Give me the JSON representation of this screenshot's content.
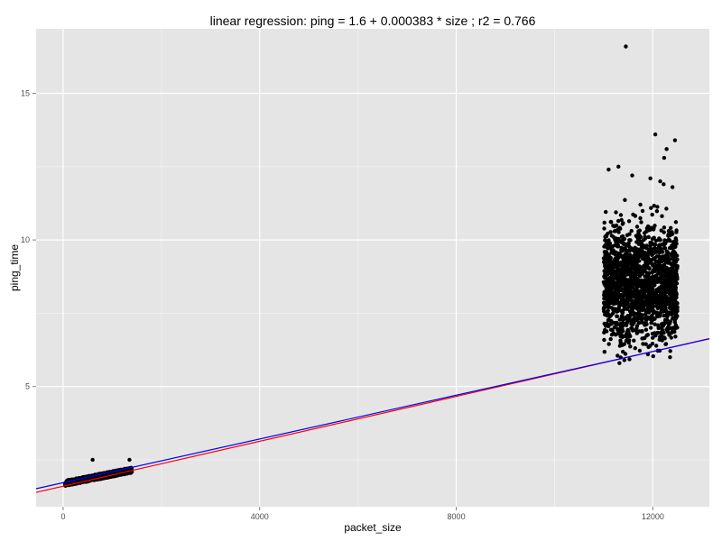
{
  "chart_data": {
    "type": "scatter",
    "title": "linear regression: ping = 1.6 + 0.000383 * size ; r2 = 0.766",
    "xlabel": "packet_size",
    "ylabel": "ping_time",
    "xlim": [
      -550,
      13150
    ],
    "ylim": [
      0.9,
      17.2
    ],
    "x_ticks": [
      0,
      4000,
      8000,
      12000
    ],
    "x_tick_labels": [
      "0",
      "4000",
      "8000",
      "12000"
    ],
    "y_ticks": [
      5,
      10,
      15
    ],
    "y_tick_labels": [
      "5",
      "10",
      "15"
    ],
    "grid": true,
    "legend": "none",
    "colors": {
      "panel_background": "#e5e5e5",
      "grid_major": "#ffffff",
      "grid_minor": "#f2f2f2",
      "points": "#000000",
      "fit_line": "#ff0000",
      "second_line": "#0000ff"
    },
    "clusters": [
      {
        "x_range": [
          40,
          1400
        ],
        "y_trend": [
          1.7,
          2.15
        ],
        "y_spread": 0.18,
        "count": 1100
      },
      {
        "x_range": [
          11000,
          12500
        ],
        "y_range": [
          5.8,
          11.2
        ],
        "count": 1700
      }
    ],
    "notable_points": [
      {
        "x": 11450,
        "y": 16.6
      },
      {
        "x": 12050,
        "y": 13.6
      },
      {
        "x": 12450,
        "y": 13.4
      },
      {
        "x": 12280,
        "y": 13.1
      },
      {
        "x": 12230,
        "y": 12.8
      },
      {
        "x": 11100,
        "y": 12.4
      },
      {
        "x": 11300,
        "y": 12.5
      },
      {
        "x": 11580,
        "y": 12.2
      },
      {
        "x": 11950,
        "y": 12.1
      },
      {
        "x": 12150,
        "y": 12.0
      },
      {
        "x": 12400,
        "y": 11.8
      },
      {
        "x": 12220,
        "y": 11.9
      },
      {
        "x": 11320,
        "y": 5.8
      },
      {
        "x": 11420,
        "y": 5.9
      },
      {
        "x": 11900,
        "y": 6.1
      },
      {
        "x": 12350,
        "y": 6.0
      },
      {
        "x": 600,
        "y": 2.5
      },
      {
        "x": 1350,
        "y": 2.5
      }
    ],
    "lines": [
      {
        "name": "",
        "color": "#ff0000",
        "intercept": 1.6,
        "slope": 0.000383
      },
      {
        "name": "",
        "color": "#0000ff",
        "intercept": 1.72,
        "slope": 0.000373
      }
    ]
  }
}
